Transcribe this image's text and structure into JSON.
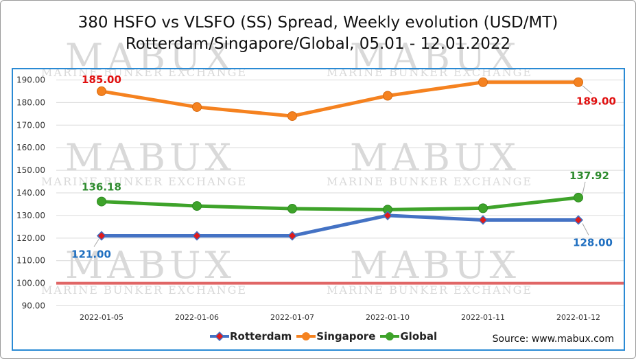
{
  "title_line1": "380 HSFO vs VLSFO (SS) Spread, Weekly evolution (USD/MT)",
  "title_line2": "Rotterdam/Singapore/Global, 05.01 - 12.01.2022",
  "watermark": {
    "brand": "MABUX",
    "subtitle": "MARINE BUNKER EXCHANGE"
  },
  "source": "Source: www.mabux.com",
  "colors": {
    "rotterdam": "#4472c4",
    "rotterdam_marker": "#e01b1b",
    "singapore": "#f58220",
    "global": "#3ea32a",
    "reference_line": "#e06666",
    "label_red": "#e01010",
    "label_blue": "#1f6fc0",
    "label_green": "#2e8b2e",
    "plot_border": "#2a8ad4",
    "grid": "#d9d9d9"
  },
  "chart_data": {
    "type": "line",
    "title": "380 HSFO vs VLSFO (SS) Spread, Weekly evolution (USD/MT) Rotterdam/Singapore/Global, 05.01 - 12.01.2022",
    "categories": [
      "2022-01-05",
      "2022-01-06",
      "2022-01-07",
      "2022-01-10",
      "2022-01-11",
      "2022-01-12"
    ],
    "yticks": [
      "90.00",
      "100.00",
      "110.00",
      "120.00",
      "130.00",
      "140.00",
      "150.00",
      "160.00",
      "170.00",
      "180.00",
      "190.00"
    ],
    "ylim": [
      85,
      195
    ],
    "grid": true,
    "legend_position": "bottom",
    "reference_value": 100,
    "series": [
      {
        "name": "Rotterdam",
        "key": "rotterdam",
        "values": [
          121,
          121,
          121,
          130,
          128,
          128
        ],
        "marker": "diamond"
      },
      {
        "name": "Singapore",
        "key": "singapore",
        "values": [
          185,
          178,
          174,
          183,
          189,
          189
        ],
        "marker": "circle"
      },
      {
        "name": "Global",
        "key": "global",
        "values": [
          136.18,
          134.2,
          133,
          132.6,
          133.2,
          137.92
        ],
        "marker": "circle"
      }
    ],
    "data_labels": [
      {
        "series": "singapore",
        "index": 0,
        "text": "185.00",
        "color_key": "label_red"
      },
      {
        "series": "singapore",
        "index": 5,
        "text": "189.00",
        "color_key": "label_red"
      },
      {
        "series": "global",
        "index": 0,
        "text": "136.18",
        "color_key": "label_green"
      },
      {
        "series": "global",
        "index": 5,
        "text": "137.92",
        "color_key": "label_green"
      },
      {
        "series": "rotterdam",
        "index": 0,
        "text": "121.00",
        "color_key": "label_blue"
      },
      {
        "series": "rotterdam",
        "index": 5,
        "text": "128.00",
        "color_key": "label_blue"
      }
    ]
  }
}
